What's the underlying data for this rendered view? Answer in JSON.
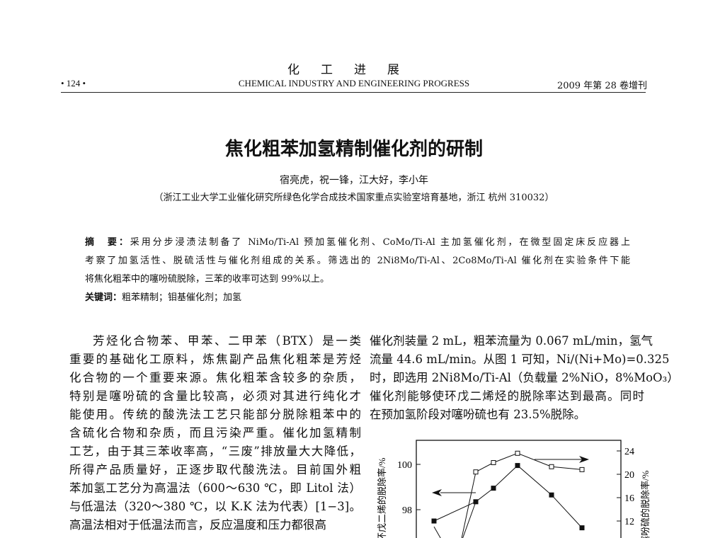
{
  "header": {
    "journal_cn": "化工进展",
    "page_number": "• 124 •",
    "journal_en": "CHEMICAL INDUSTRY AND ENGINEERING PROGRESS",
    "issue": "2009 年第 28 卷增刊"
  },
  "article": {
    "title": "焦化粗苯加氢精制催化剂的研制",
    "authors": "宿亮虎，祝一锋，江大好，李小年",
    "affiliation": "（浙江工业大学工业催化研究所绿色化学合成技术国家重点实验室培育基地，浙江 杭州 310032）"
  },
  "abstract": {
    "label": "摘　要：",
    "lines": [
      "采用分步浸渍法制备了 NiMo/Ti-Al 预加氢催化剂、CoMo/Ti-Al 主加氢催化剂，在微型固定床反应器上",
      "考察了加氢活性、脱硫活性与催化剂组成的关系。筛选出的 2Ni8Mo/Ti-Al、2Co8Mo/Ti-Al 催化剂在实验条件下能",
      "将焦化粗苯中的噻吩硫脱除，三苯的收率可达到 99%以上。"
    ],
    "keywords_label": "关键词：",
    "keywords": "粗苯精制；钼基催化剂；加氢"
  },
  "left_column": {
    "lines": [
      "芳烃化合物苯、甲苯、二甲苯（BTX）是一类",
      "重要的基础化工原料，炼焦副产品焦化粗苯是芳烃",
      "化合物的一个重要来源。焦化粗苯含较多的杂质，",
      "特别是噻吩硫的含量比较高，必须对其进行纯化才",
      "能使用。传统的酸洗法工艺只能部分脱除粗苯中的",
      "含硫化合物和杂质，而且污染严重。催化加氢精制",
      "工艺，由于其三苯收率高，“三废”排放量大大降低，",
      "所得产品质量好，正逐步取代酸洗法。目前国外粗",
      "苯加氢工艺分为高温法（600～630 ℃，即 Litol 法）",
      "与低温法（320～380 ℃，以 K.K 法为代表）[1−3]。",
      "高温法相对于低温法而言，反应温度和压力都很高"
    ]
  },
  "right_column": {
    "lines": [
      "催化剂装量 2 mL，粗苯流量为 0.067 mL/min，氢气",
      "流量 44.6 mL/min。从图 1 可知，Ni/(Ni+Mo)=0.325",
      "时，即选用 2Ni8Mo/Ti-Al（负载量 2%NiO，8%MoO₃）",
      "催化剂能够使环戊二烯烃的脱除率达到最高。同时",
      "在预加氢阶段对噻吩硫也有 23.5%脱除。"
    ]
  },
  "chart_data": {
    "type": "line",
    "ylabel_left": "环戊二烯的脱除率/%",
    "ylabel_right": "噻吩硫的脱除率/%",
    "left_ticks": [
      "98",
      "100"
    ],
    "right_ticks": [
      "12",
      "16",
      "20",
      "24"
    ],
    "ylim_left": [
      96.5,
      101.1
    ],
    "ylim_right": [
      8,
      25.5
    ],
    "series": [
      {
        "axis": "left",
        "marker": "filled-square",
        "values": [
          97.5,
          98.35,
          98.95,
          99.95,
          98.65,
          97.2
        ]
      },
      {
        "axis": "right",
        "marker": "open-square",
        "values": [
          20.4,
          22.0,
          23.6,
          21.3,
          20.8
        ]
      }
    ],
    "grid": false
  }
}
